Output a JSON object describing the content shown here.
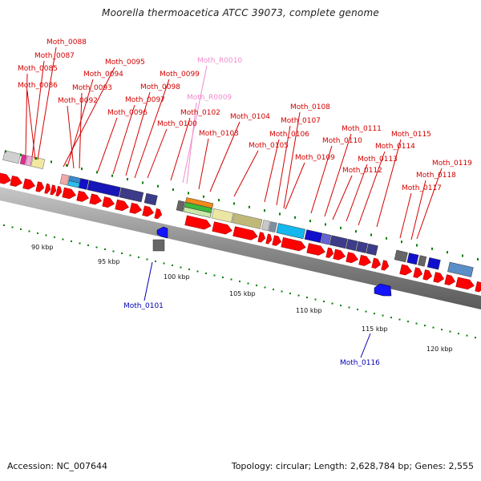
{
  "title": "Moorella thermoacetica ATCC 39073, complete genome",
  "footer": {
    "accession": "Accession: NC_007644",
    "topology": "Topology: circular; Length: 2,628,784 bp; Genes: 2,555"
  },
  "colors": {
    "label_plus": "#d40000",
    "label_minus": "#0000b4",
    "label_rna": "#f08ccd",
    "arrow_forward": "#ff0000",
    "arrow_reverse": "#1414ff",
    "tick_major": "#008000",
    "backbone": "#888888"
  },
  "scale_labels": [
    "90 kbp",
    "95 kbp",
    "100 kbp",
    "105 kbp",
    "110 kbp",
    "115 kbp",
    "120 kbp"
  ],
  "gene_labels_top": [
    "Moth_0088",
    "Moth_0087",
    "Moth_0085",
    "Moth_0086",
    "Moth_0095",
    "Moth_0094",
    "Moth_0093",
    "Moth_0092",
    "Moth_R0010",
    "Moth_0099",
    "Moth_0098",
    "Moth_0097",
    "Moth_0096",
    "Moth_R0009",
    "Moth_0102",
    "Moth_0100",
    "Moth_0108",
    "Moth_0104",
    "Moth_0107",
    "Moth_0103",
    "Moth_0106",
    "Moth_0105",
    "Moth_0111",
    "Moth_0110",
    "Moth_0115",
    "Moth_0109",
    "Moth_0114",
    "Moth_0113",
    "Moth_0112",
    "Moth_0119",
    "Moth_0118",
    "Moth_0117"
  ],
  "gene_labels_bottom": [
    "Moth_0101",
    "Moth_0116"
  ]
}
